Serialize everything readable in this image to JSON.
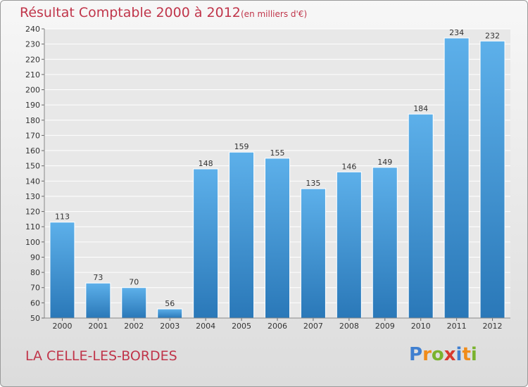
{
  "header": {
    "title": "Résultat Comptable 2000 à 2012",
    "subtitle": "(en milliers d'€)"
  },
  "footer": {
    "commune": "LA CELLE-LES-BORDES",
    "logo_text": "Proxiti",
    "logo_letters": [
      {
        "char": "P",
        "color": "#3f7fd0"
      },
      {
        "char": "r",
        "color": "#f08c1a"
      },
      {
        "char": "o",
        "color": "#7ab32e"
      },
      {
        "char": "x",
        "color": "#d8392e"
      },
      {
        "char": "i",
        "color": "#3f7fd0"
      },
      {
        "char": "t",
        "color": "#f08c1a"
      },
      {
        "char": "i",
        "color": "#7ab32e"
      }
    ]
  },
  "chart_data": {
    "type": "bar",
    "title": "Résultat Comptable 2000 à 2012",
    "subtitle": "(en milliers d'€)",
    "categories": [
      "2000",
      "2001",
      "2002",
      "2003",
      "2004",
      "2005",
      "2006",
      "2007",
      "2008",
      "2009",
      "2010",
      "2011",
      "2012"
    ],
    "values": [
      113,
      73,
      70,
      56,
      148,
      159,
      155,
      135,
      146,
      149,
      184,
      234,
      232
    ],
    "ylim": [
      50,
      240
    ],
    "ytick_step": 10,
    "grid": true,
    "bar_color": "#4fa3e0",
    "bar_color_dark": "#2a78b8"
  }
}
